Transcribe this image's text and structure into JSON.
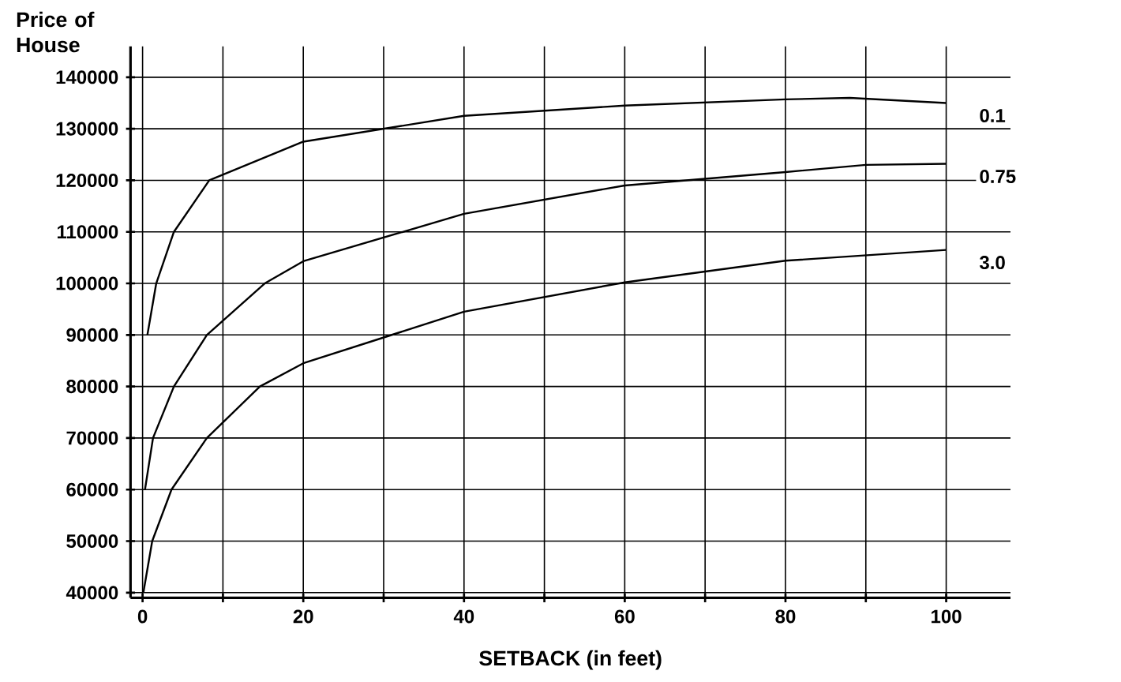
{
  "chart_data": {
    "type": "line",
    "xlabel": "SETBACK (in feet)",
    "ylabel": "Price of House",
    "xlim": [
      -1.5,
      108
    ],
    "ylim": [
      39000,
      146000
    ],
    "xticks": [
      0,
      {
        "value": 10,
        "label": null
      },
      20,
      {
        "value": 30,
        "label": null
      },
      40,
      {
        "value": 50,
        "label": null
      },
      60,
      {
        "value": 70,
        "label": null
      },
      80,
      {
        "value": 90,
        "label": null
      },
      100
    ],
    "yticks": [
      40000,
      50000,
      60000,
      70000,
      80000,
      90000,
      100000,
      110000,
      120000,
      130000,
      140000
    ],
    "grid": true,
    "marker": "none",
    "line_style": "solid",
    "series": [
      {
        "name": "0.1",
        "color": "#000000",
        "x": [
          0.6,
          1.7,
          3.9,
          8.3,
          20,
          40,
          60,
          80,
          88,
          100
        ],
        "values": [
          90000,
          100000,
          110000,
          120000,
          127500,
          132500,
          134500,
          135700,
          136000,
          135000
        ]
      },
      {
        "name": "0.75",
        "color": "#000000",
        "x": [
          0.3,
          1.3,
          3.9,
          8,
          15.2,
          20,
          40,
          60,
          80,
          90,
          100
        ],
        "values": [
          60000,
          70000,
          80000,
          90000,
          100000,
          104300,
          113500,
          119000,
          121600,
          123000,
          123200
        ]
      },
      {
        "name": "3.0",
        "color": "#000000",
        "x": [
          0.1,
          1.2,
          3.6,
          8,
          14.6,
          20,
          40,
          60,
          80,
          100
        ],
        "values": [
          40000,
          50000,
          60000,
          70000,
          80000,
          84500,
          94500,
          100200,
          104400,
          106500
        ]
      }
    ]
  }
}
